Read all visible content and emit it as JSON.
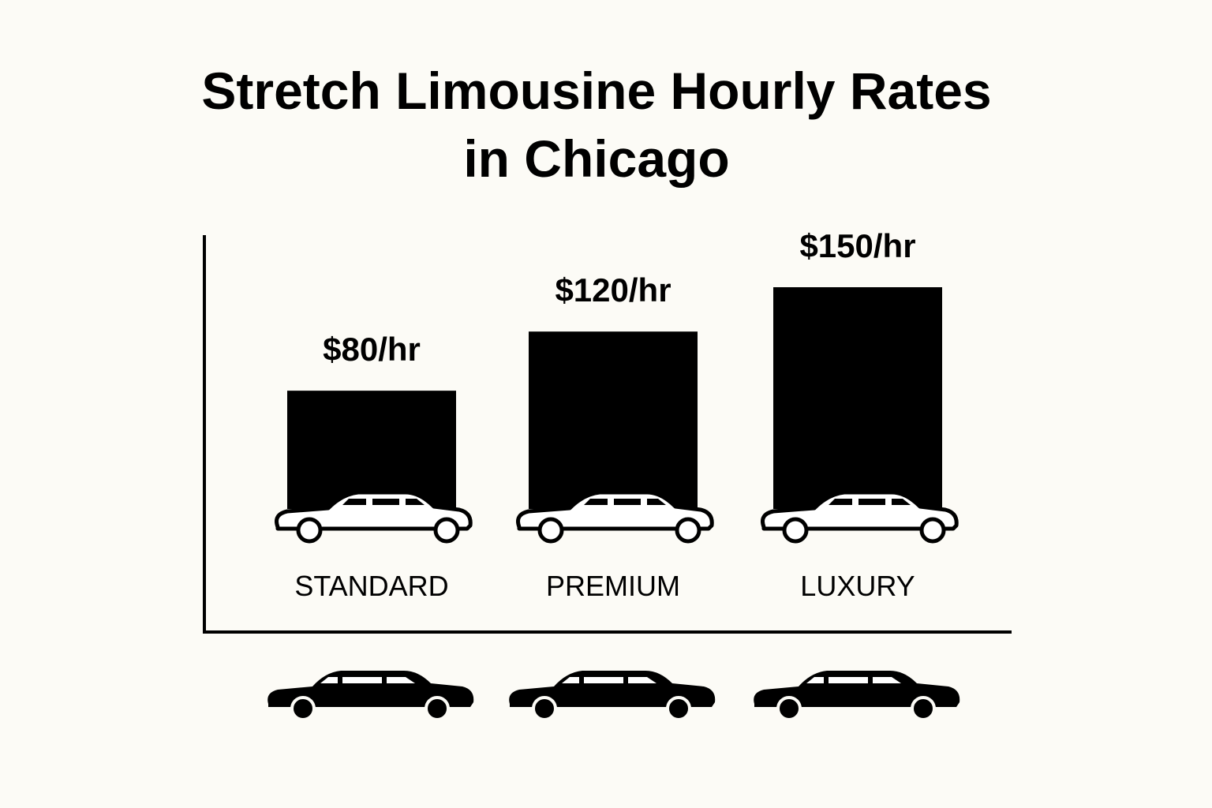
{
  "chart_data": {
    "type": "bar",
    "title": "Stretch Limousine Hourly Rates in Chicago",
    "categories": [
      "STANDARD",
      "PREMIUM",
      "LUXURY"
    ],
    "values": [
      80,
      120,
      150
    ],
    "value_labels": [
      "$80/hr",
      "$120/hr",
      "$150/hr"
    ],
    "color": "#000000"
  }
}
